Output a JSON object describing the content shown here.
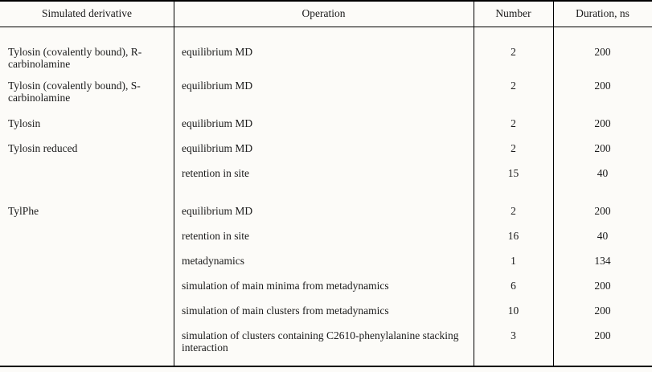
{
  "table": {
    "headers": [
      {
        "label": "Simulated derivative"
      },
      {
        "label": "Operation"
      },
      {
        "label": "Number"
      },
      {
        "label": "Duration, ns"
      }
    ],
    "rows": [
      {
        "derivative": "Tylosin (covalently bound), R-carbinolamine",
        "operation": "equilibrium MD",
        "number": "2",
        "duration": "200"
      },
      {
        "derivative": "Tylosin (covalently bound), S-carbinolamine",
        "operation": "equilibrium MD",
        "number": "2",
        "duration": "200"
      },
      {
        "derivative": "Tylosin",
        "operation": "equilibrium MD",
        "number": "2",
        "duration": "200"
      },
      {
        "derivative": "Tylosin reduced",
        "operation": "equilibrium MD",
        "number": "2",
        "duration": "200"
      },
      {
        "derivative": "",
        "operation": "retention in site",
        "number": "15",
        "duration": "40"
      },
      {
        "derivative": "TylPhe",
        "operation": "equilibrium MD",
        "number": "2",
        "duration": "200"
      },
      {
        "derivative": "",
        "operation": "retention in site",
        "number": "16",
        "duration": "40"
      },
      {
        "derivative": "",
        "operation": "metadynamics",
        "number": "1",
        "duration": "134"
      },
      {
        "derivative": "",
        "operation": "simulation of main minima from metadynamics",
        "number": "6",
        "duration": "200"
      },
      {
        "derivative": "",
        "operation": "simulation of main clusters from metadynamics",
        "number": "10",
        "duration": "200"
      },
      {
        "derivative": "",
        "operation": "simulation of clusters containing C2610-phenylalanine stacking interaction",
        "number": "3",
        "duration": "200"
      }
    ],
    "colors": {
      "rule": "#000000",
      "text": "#1a1a1a",
      "background": "#fcfbf8"
    }
  }
}
